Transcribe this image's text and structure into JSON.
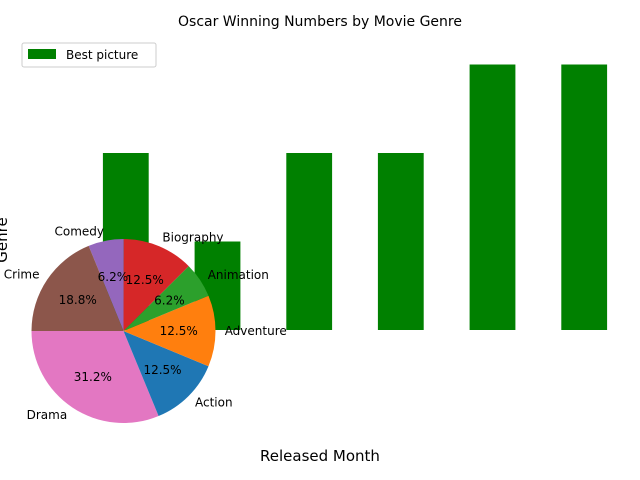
{
  "chart_data": {
    "title": "Oscar Winning Numbers by Movie Genre",
    "xlabel": "Released Month",
    "ylabel": "Genre",
    "colors": {
      "bar": "#008000",
      "legend_border": "#cccccc"
    },
    "bar_chart": {
      "type": "bar",
      "series": [
        {
          "name": "Best picture",
          "values": [
            2,
            1,
            2,
            2,
            3,
            3
          ]
        }
      ],
      "ylim": [
        0,
        3.3
      ],
      "legend": "upper-left",
      "axes_visible": false
    },
    "pie_chart": {
      "type": "pie",
      "slices": [
        {
          "label": "Drama",
          "value": 31.2,
          "pct_label": "31.2%",
          "color": "#e377c2"
        },
        {
          "label": "Action",
          "value": 12.5,
          "pct_label": "12.5%",
          "color": "#1f77b4"
        },
        {
          "label": "Adventure",
          "value": 12.5,
          "pct_label": "12.5%",
          "color": "#ff7f0e"
        },
        {
          "label": "Animation",
          "value": 6.2,
          "pct_label": "6.2%",
          "color": "#2ca02c"
        },
        {
          "label": "Biography",
          "value": 12.5,
          "pct_label": "12.5%",
          "color": "#d62728"
        },
        {
          "label": "Comedy",
          "value": 6.2,
          "pct_label": "6.2%",
          "color": "#9467bd"
        },
        {
          "label": "Crime",
          "value": 18.8,
          "pct_label": "18.8%",
          "color": "#8c564b"
        }
      ]
    }
  }
}
